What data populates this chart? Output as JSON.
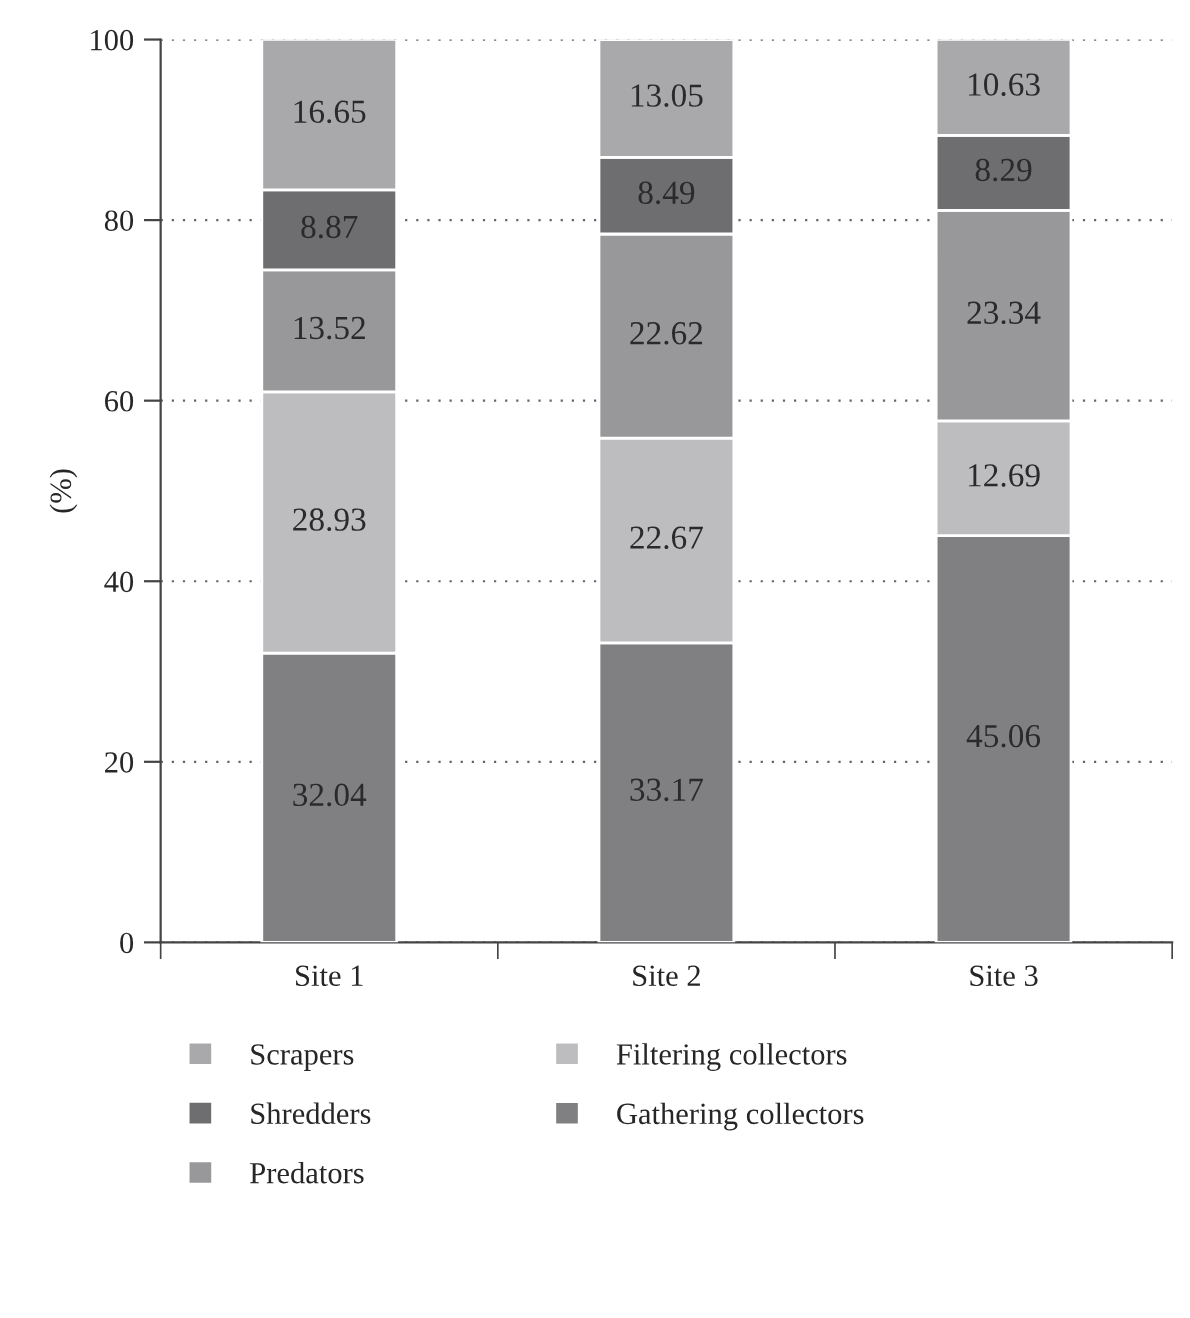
{
  "chart_data": {
    "type": "bar",
    "stacked": true,
    "ylabel": "(%)",
    "categories": [
      "Site 1",
      "Site 2",
      "Site 3"
    ],
    "series": [
      {
        "name": "Gathering collectors",
        "color": "#808083",
        "values": [
          32.04,
          33.17,
          45.06
        ]
      },
      {
        "name": "Filtering collectors",
        "color": "#bdbdc0",
        "values": [
          28.93,
          22.67,
          12.69
        ]
      },
      {
        "name": "Predators",
        "color": "#98989b",
        "values": [
          13.52,
          22.62,
          23.34
        ]
      },
      {
        "name": "Shredders",
        "color": "#6e6e71",
        "values": [
          8.87,
          8.49,
          8.29
        ]
      },
      {
        "name": "Scrapers",
        "color": "#a9a9ac",
        "values": [
          16.65,
          13.05,
          10.63
        ]
      }
    ],
    "ylim": [
      0,
      100
    ],
    "yticks": [
      0,
      20,
      40,
      60,
      80,
      100
    ],
    "grid": "y",
    "legend": "bottom",
    "data_labels": true
  }
}
